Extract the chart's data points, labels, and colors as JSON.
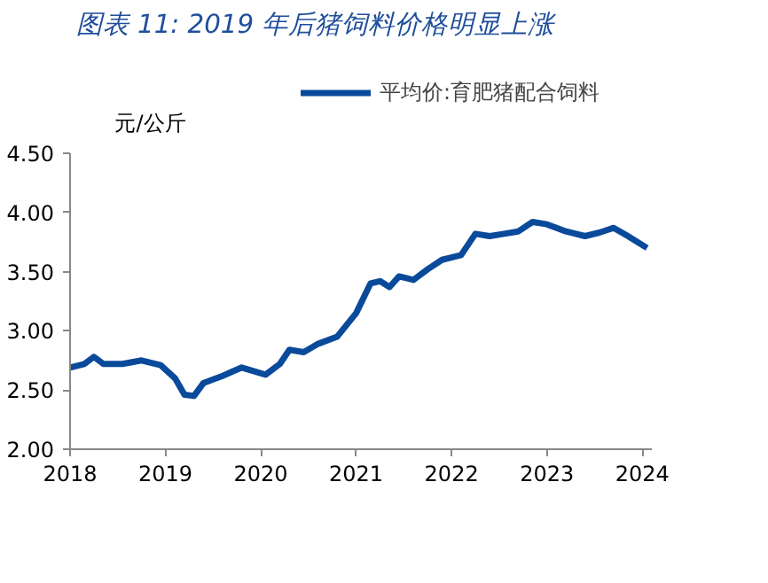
{
  "chart_data": {
    "type": "line",
    "title": "图表 11:  2019 年后猪饲料价格明显上涨",
    "ylabel": "元/公斤",
    "x": [
      2018.0,
      2018.15,
      2018.25,
      2018.35,
      2018.55,
      2018.75,
      2018.95,
      2019.1,
      2019.2,
      2019.3,
      2019.4,
      2019.6,
      2019.8,
      2020.05,
      2020.2,
      2020.3,
      2020.45,
      2020.6,
      2020.8,
      2021.0,
      2021.15,
      2021.25,
      2021.35,
      2021.45,
      2021.6,
      2021.75,
      2021.9,
      2022.1,
      2022.25,
      2022.4,
      2022.55,
      2022.7,
      2022.85,
      2023.0,
      2023.2,
      2023.4,
      2023.55,
      2023.7,
      2023.85,
      2024.05
    ],
    "series": [
      {
        "name": "平均价:育肥猪配合饲料",
        "color": "#0a4a9a",
        "values": [
          2.69,
          2.72,
          2.78,
          2.72,
          2.72,
          2.75,
          2.71,
          2.6,
          2.46,
          2.45,
          2.56,
          2.62,
          2.69,
          2.63,
          2.72,
          2.84,
          2.82,
          2.89,
          2.95,
          3.15,
          3.4,
          3.42,
          3.37,
          3.46,
          3.43,
          3.52,
          3.6,
          3.64,
          3.82,
          3.8,
          3.82,
          3.84,
          3.92,
          3.9,
          3.84,
          3.8,
          3.83,
          3.87,
          3.8,
          3.7
        ]
      }
    ],
    "xlim": [
      2018,
      2024.1
    ],
    "xticks": [
      2018,
      2019,
      2020,
      2021,
      2022,
      2023,
      2024
    ],
    "ylim": [
      2.0,
      4.5
    ],
    "yticks": [
      {
        "value": 2.0,
        "label": "2.00"
      },
      {
        "value": 2.5,
        "label": "2.50"
      },
      {
        "value": 3.0,
        "label": "3.00"
      },
      {
        "value": 3.5,
        "label": "3.50"
      },
      {
        "value": 4.0,
        "label": "4.00"
      },
      {
        "value": 4.5,
        "label": "4.50"
      }
    ],
    "grid": false,
    "legend": "top",
    "marker": "none",
    "line_style": "solid"
  }
}
